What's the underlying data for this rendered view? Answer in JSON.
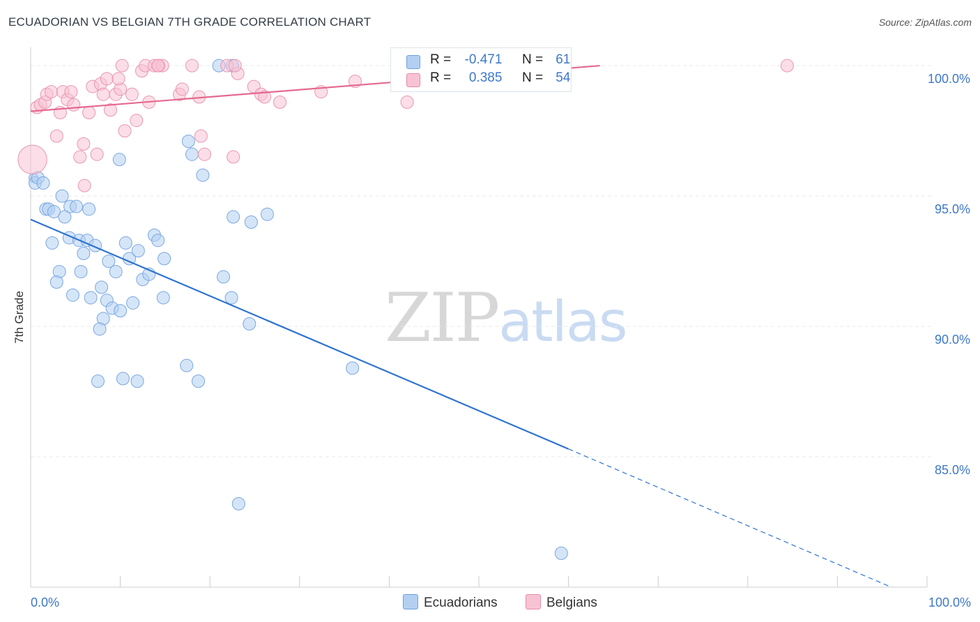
{
  "title": "ECUADORIAN VS BELGIAN 7TH GRADE CORRELATION CHART",
  "source": "Source: ZipAtlas.com",
  "watermark": {
    "zip": "ZIP",
    "atlas": "atlas"
  },
  "legend": {
    "r_label": "R =",
    "n_label": "N =",
    "series": [
      {
        "name": "Ecuadorians",
        "r": "-0.471",
        "n": "61",
        "fill": "#b3cff2",
        "stroke": "#6fa0dd"
      },
      {
        "name": "Belgians",
        "r": "0.385",
        "n": "54",
        "fill": "#f7c3d3",
        "stroke": "#e98aa9"
      }
    ]
  },
  "chart_data": {
    "type": "scatter",
    "title": "ECUADORIAN VS BELGIAN 7TH GRADE CORRELATION CHART",
    "xlabel": "",
    "ylabel": "7th Grade",
    "xlim": [
      0,
      100
    ],
    "ylim": [
      80.0,
      100.7
    ],
    "x_tick_labels": [
      "0.0%",
      "100.0%"
    ],
    "y_ticks": [
      {
        "value": 100,
        "label": "100.0%"
      },
      {
        "value": 95,
        "label": "95.0%"
      },
      {
        "value": 90,
        "label": "90.0%"
      },
      {
        "value": 85,
        "label": "85.0%"
      }
    ],
    "colors": {
      "blue_line": "#2f74d0",
      "pink_line": "#e5698f",
      "grid": "#e6e9ee",
      "tick_label": "#3e78c9"
    },
    "series": [
      {
        "name": "Ecuadorians",
        "r": -0.471,
        "n": 61,
        "trend": {
          "x0": 0,
          "y0": 94.1,
          "x1": 60,
          "y1": 85.3,
          "dash_to_x": 96,
          "dash_to_y": 80.0
        },
        "points": [
          [
            0.3,
            95.7,
            0.35
          ],
          [
            0.5,
            95.5,
            0.5
          ],
          [
            0.8,
            95.7,
            0.5
          ],
          [
            1.4,
            95.5,
            0.5
          ],
          [
            1.7,
            94.5,
            0.5
          ],
          [
            2.0,
            94.5,
            0.5
          ],
          [
            2.6,
            94.4,
            0.5
          ],
          [
            3.5,
            95.0,
            0.5
          ],
          [
            3.8,
            94.2,
            0.5
          ],
          [
            4.4,
            94.6,
            0.5
          ],
          [
            5.1,
            94.6,
            0.5
          ],
          [
            6.5,
            94.5,
            0.5
          ],
          [
            2.4,
            93.2,
            0.5
          ],
          [
            4.3,
            93.4,
            0.5
          ],
          [
            5.4,
            93.3,
            0.5
          ],
          [
            6.3,
            93.3,
            0.5
          ],
          [
            7.2,
            93.1,
            0.5
          ],
          [
            5.9,
            92.8,
            0.5
          ],
          [
            8.7,
            92.5,
            0.5
          ],
          [
            10.6,
            93.2,
            0.5
          ],
          [
            11.0,
            92.6,
            0.5
          ],
          [
            12.0,
            92.9,
            0.5
          ],
          [
            13.8,
            93.5,
            0.5
          ],
          [
            14.2,
            93.3,
            0.5
          ],
          [
            14.9,
            92.6,
            0.5
          ],
          [
            3.2,
            92.1,
            0.5
          ],
          [
            5.6,
            92.1,
            0.5
          ],
          [
            9.5,
            92.1,
            0.5
          ],
          [
            12.5,
            91.8,
            0.5
          ],
          [
            13.2,
            92.0,
            0.5
          ],
          [
            2.9,
            91.7,
            0.5
          ],
          [
            7.9,
            91.5,
            0.5
          ],
          [
            4.7,
            91.2,
            0.5
          ],
          [
            6.7,
            91.1,
            0.5
          ],
          [
            8.5,
            91.0,
            0.5
          ],
          [
            9.1,
            90.7,
            0.5
          ],
          [
            10.0,
            90.6,
            0.5
          ],
          [
            11.4,
            90.9,
            0.5
          ],
          [
            14.8,
            91.1,
            0.5
          ],
          [
            8.1,
            90.3,
            0.5
          ],
          [
            7.7,
            89.9,
            0.5
          ],
          [
            9.9,
            96.4,
            0.5
          ],
          [
            18.0,
            96.6,
            0.5
          ],
          [
            17.6,
            97.1,
            0.5
          ],
          [
            19.2,
            95.8,
            0.5
          ],
          [
            22.6,
            94.2,
            0.5
          ],
          [
            24.6,
            94.0,
            0.5
          ],
          [
            26.4,
            94.3,
            0.5
          ],
          [
            21.5,
            91.9,
            0.5
          ],
          [
            22.4,
            91.1,
            0.5
          ],
          [
            24.4,
            90.1,
            0.5
          ],
          [
            17.4,
            88.5,
            0.5
          ],
          [
            18.7,
            87.9,
            0.5
          ],
          [
            7.5,
            87.9,
            0.5
          ],
          [
            10.3,
            88.0,
            0.5
          ],
          [
            11.9,
            87.9,
            0.5
          ],
          [
            35.9,
            88.4,
            0.5
          ],
          [
            23.2,
            83.2,
            0.5
          ],
          [
            59.2,
            81.3,
            0.5
          ],
          [
            22.5,
            100.0,
            0.5
          ],
          [
            21.0,
            100.0,
            0.5
          ]
        ]
      },
      {
        "name": "Belgians",
        "r": 0.385,
        "n": 54,
        "trend": {
          "x0": 0,
          "y0": 98.25,
          "x1": 63.5,
          "y1": 100.0
        },
        "points": [
          [
            0.2,
            96.4,
            1.15
          ],
          [
            0.7,
            98.4,
            0.5
          ],
          [
            1.1,
            98.5,
            0.5
          ],
          [
            1.6,
            98.6,
            0.5
          ],
          [
            1.8,
            98.9,
            0.5
          ],
          [
            2.3,
            99.0,
            0.5
          ],
          [
            2.9,
            97.3,
            0.5
          ],
          [
            3.3,
            98.2,
            0.5
          ],
          [
            3.6,
            99.0,
            0.5
          ],
          [
            4.1,
            98.7,
            0.5
          ],
          [
            4.5,
            99.0,
            0.5
          ],
          [
            4.8,
            98.5,
            0.5
          ],
          [
            5.5,
            96.5,
            0.5
          ],
          [
            5.9,
            97.0,
            0.5
          ],
          [
            6.5,
            98.2,
            0.5
          ],
          [
            6.9,
            99.2,
            0.5
          ],
          [
            7.4,
            96.6,
            0.5
          ],
          [
            7.8,
            99.3,
            0.5
          ],
          [
            8.1,
            98.9,
            0.5
          ],
          [
            8.5,
            99.5,
            0.5
          ],
          [
            8.9,
            98.3,
            0.5
          ],
          [
            9.5,
            98.9,
            0.5
          ],
          [
            10.0,
            99.1,
            0.5
          ],
          [
            10.5,
            97.5,
            0.5
          ],
          [
            9.8,
            99.5,
            0.5
          ],
          [
            11.3,
            98.9,
            0.5
          ],
          [
            11.8,
            97.9,
            0.5
          ],
          [
            12.4,
            99.8,
            0.5
          ],
          [
            12.8,
            100.0,
            0.5
          ],
          [
            13.2,
            98.6,
            0.5
          ],
          [
            13.8,
            100.0,
            0.5
          ],
          [
            14.3,
            100.0,
            0.5
          ],
          [
            14.7,
            100.0,
            0.5
          ],
          [
            16.6,
            98.9,
            0.5
          ],
          [
            16.9,
            99.1,
            0.5
          ],
          [
            18.0,
            100.0,
            0.5
          ],
          [
            18.8,
            98.8,
            0.5
          ],
          [
            19.0,
            97.3,
            0.5
          ],
          [
            19.4,
            96.6,
            0.5
          ],
          [
            21.9,
            100.0,
            0.5
          ],
          [
            22.6,
            96.5,
            0.5
          ],
          [
            23.1,
            99.7,
            0.5
          ],
          [
            24.9,
            99.2,
            0.5
          ],
          [
            25.7,
            98.9,
            0.5
          ],
          [
            26.1,
            98.8,
            0.5
          ],
          [
            27.8,
            98.6,
            0.5
          ],
          [
            32.4,
            99.0,
            0.5
          ],
          [
            36.2,
            99.4,
            0.5
          ],
          [
            42.0,
            98.6,
            0.5
          ],
          [
            84.4,
            100.0,
            0.5
          ],
          [
            6.0,
            95.4,
            0.5
          ],
          [
            10.2,
            100.0,
            0.5
          ],
          [
            14.2,
            100.0,
            0.5
          ],
          [
            22.8,
            100.0,
            0.5
          ]
        ]
      }
    ]
  }
}
